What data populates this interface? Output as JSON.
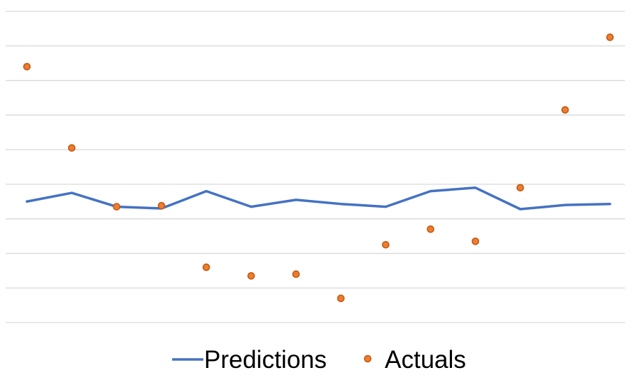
{
  "legend": {
    "series_1": "Predictions",
    "series_2": "Actuals"
  },
  "colors": {
    "predictions": "#4472C4",
    "actuals_fill": "#ED7D31",
    "actuals_stroke": "#C55A11",
    "grid": "#D9D9D9"
  },
  "chart_data": {
    "type": "line",
    "x": [
      1,
      2,
      3,
      4,
      5,
      6,
      7,
      8,
      9,
      10,
      11,
      12,
      13,
      14
    ],
    "ylim": [
      0,
      9
    ],
    "grid": true,
    "legend_position": "bottom",
    "series": [
      {
        "name": "Predictions",
        "type": "line",
        "values": [
          3.5,
          3.75,
          3.35,
          3.3,
          3.8,
          3.35,
          3.55,
          3.43,
          3.35,
          3.8,
          3.9,
          3.28,
          3.4,
          3.43
        ]
      },
      {
        "name": "Actuals",
        "type": "scatter",
        "values": [
          7.4,
          5.05,
          3.35,
          3.38,
          1.6,
          1.35,
          1.4,
          0.7,
          2.25,
          2.7,
          2.35,
          3.9,
          6.15,
          8.25
        ]
      }
    ]
  }
}
